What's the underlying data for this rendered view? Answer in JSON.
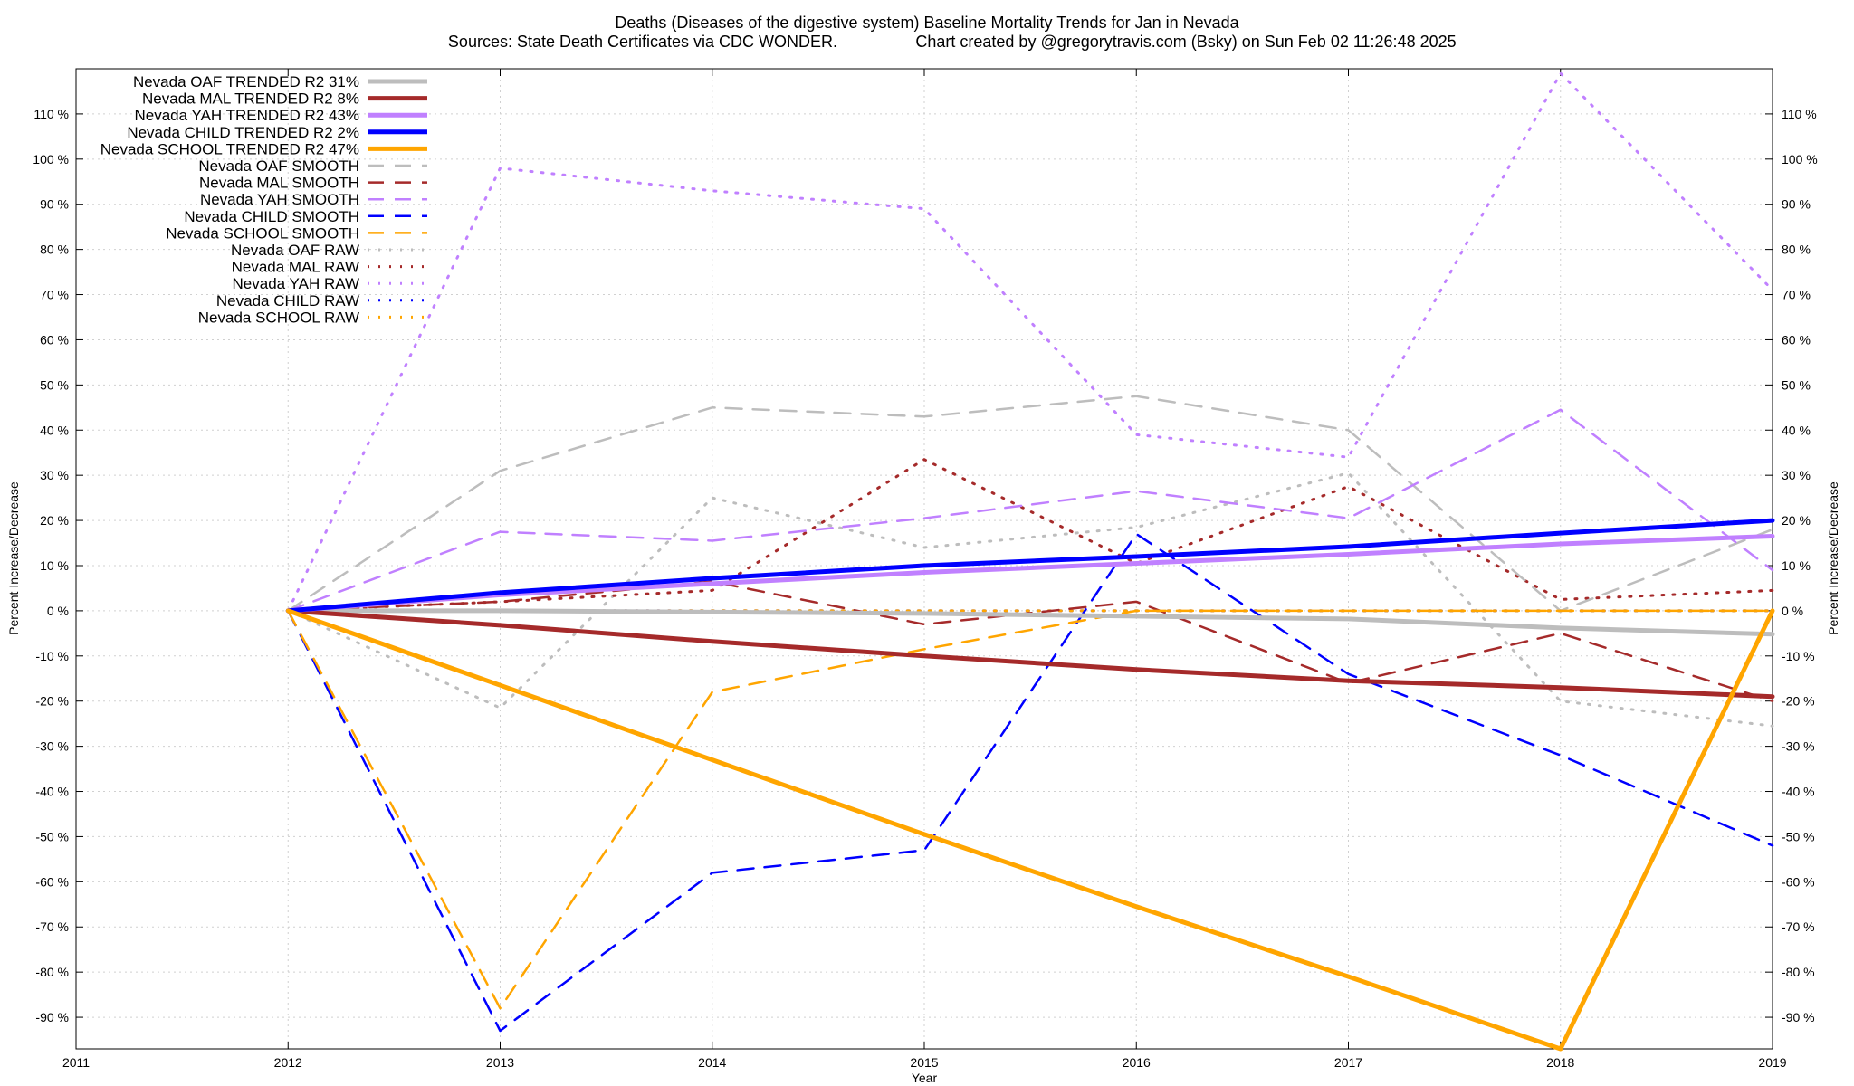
{
  "chart_data": {
    "type": "line",
    "title": "Deaths (Diseases of the digestive system)  Baseline Mortality Trends for Jan in Nevada",
    "subtitle_left": "Sources: State Death Certificates via CDC WONDER.",
    "subtitle_right": "Chart created by @gregorytravis.com (Bsky) on Sun Feb 02 11:26:48 2025",
    "xlabel": "Year",
    "ylabel": "Percent Increase/Decrease",
    "xlim": [
      2011,
      2019
    ],
    "ylim": [
      -97,
      120
    ],
    "x_ticks": [
      2011,
      2012,
      2013,
      2014,
      2015,
      2016,
      2017,
      2018,
      2019
    ],
    "y_ticks": [
      110,
      100,
      90,
      80,
      70,
      60,
      50,
      40,
      30,
      20,
      10,
      0,
      -10,
      -20,
      -30,
      -40,
      -50,
      -60,
      -70,
      -80,
      -90
    ],
    "y_tick_suffix": " %",
    "grid": true,
    "legend_position": "top-left",
    "series": [
      {
        "name": "Nevada OAF TRENDED R2  31%",
        "style": "trended",
        "color": "#bdbdbd",
        "x": [
          2012,
          2013,
          2014,
          2015,
          2016,
          2017,
          2018,
          2019
        ],
        "values": [
          0,
          0,
          -0.3,
          -0.6,
          -1.2,
          -1.8,
          -3.8,
          -5.2
        ]
      },
      {
        "name": "Nevada MAL TRENDED R2   8%",
        "style": "trended",
        "color": "#a52a2a",
        "x": [
          2012,
          2013,
          2014,
          2015,
          2016,
          2017,
          2018,
          2019
        ],
        "values": [
          0,
          -3.2,
          -6.8,
          -10,
          -13,
          -15.5,
          -17,
          -19
        ]
      },
      {
        "name": "Nevada YAH TRENDED R2  43%",
        "style": "trended",
        "color": "#c080ff",
        "x": [
          2012,
          2013,
          2014,
          2015,
          2016,
          2017,
          2018,
          2019
        ],
        "values": [
          0,
          3.5,
          6,
          8.5,
          10.5,
          12.5,
          14.8,
          16.5
        ]
      },
      {
        "name": "Nevada CHILD TRENDED R2   2%",
        "style": "trended",
        "color": "#0000ff",
        "x": [
          2012,
          2013,
          2014,
          2015,
          2016,
          2017,
          2018,
          2019
        ],
        "values": [
          0,
          4,
          7.2,
          10,
          12,
          14.2,
          17.2,
          20
        ]
      },
      {
        "name": "Nevada SCHOOL TRENDED R2  47%",
        "style": "trended",
        "color": "#ffa500",
        "x": [
          2012,
          2013,
          2014,
          2015,
          2016,
          2017,
          2018,
          2019
        ],
        "values": [
          0,
          -16.5,
          -33,
          -49.5,
          -65.5,
          -81,
          -97,
          0
        ]
      },
      {
        "name": "Nevada OAF SMOOTH",
        "style": "smooth",
        "color": "#bdbdbd",
        "x": [
          2012,
          2013,
          2014,
          2015,
          2016,
          2017,
          2018,
          2019
        ],
        "values": [
          0,
          31,
          45,
          43,
          47.5,
          40,
          0,
          18
        ]
      },
      {
        "name": "Nevada MAL SMOOTH",
        "style": "smooth",
        "color": "#a52a2a",
        "x": [
          2012,
          2013,
          2014,
          2015,
          2016,
          2017,
          2018,
          2019
        ],
        "values": [
          0,
          2,
          6.5,
          -3,
          2,
          -16,
          -5,
          -20
        ]
      },
      {
        "name": "Nevada YAH SMOOTH",
        "style": "smooth",
        "color": "#c080ff",
        "x": [
          2012,
          2013,
          2014,
          2015,
          2016,
          2017,
          2018,
          2019
        ],
        "values": [
          0,
          17.5,
          15.5,
          20.5,
          26.5,
          20.5,
          44.5,
          9
        ]
      },
      {
        "name": "Nevada CHILD SMOOTH",
        "style": "smooth",
        "color": "#0000ff",
        "x": [
          2012,
          2013,
          2014,
          2015,
          2016,
          2017,
          2018,
          2019
        ],
        "values": [
          0,
          -93,
          -58,
          -53,
          17,
          -14,
          -32,
          -52
        ]
      },
      {
        "name": "Nevada SCHOOL SMOOTH",
        "style": "smooth",
        "color": "#ffa500",
        "x": [
          2012,
          2013,
          2014,
          2015,
          2016,
          2017,
          2018,
          2019
        ],
        "values": [
          0,
          -88,
          -18,
          -8.5,
          0,
          0,
          0,
          0
        ]
      },
      {
        "name": "Nevada OAF RAW",
        "style": "raw",
        "color": "#bdbdbd",
        "x": [
          2012,
          2013,
          2014,
          2015,
          2016,
          2017,
          2018,
          2019
        ],
        "values": [
          0,
          -21.5,
          25,
          14,
          18.5,
          30.5,
          -20,
          -25.5
        ]
      },
      {
        "name": "Nevada MAL RAW",
        "style": "raw",
        "color": "#a52a2a",
        "x": [
          2012,
          2013,
          2014,
          2015,
          2016,
          2017,
          2018,
          2019
        ],
        "values": [
          0,
          2,
          4.5,
          33.5,
          10.5,
          27.5,
          2.5,
          4.5
        ]
      },
      {
        "name": "Nevada YAH RAW",
        "style": "raw",
        "color": "#c080ff",
        "x": [
          2012,
          2013,
          2014,
          2015,
          2016,
          2017,
          2018,
          2019
        ],
        "values": [
          0,
          98,
          93,
          89,
          39,
          34,
          119,
          71
        ]
      },
      {
        "name": "Nevada CHILD RAW",
        "style": "raw",
        "color": "#0000ff",
        "x": [
          2012,
          2013,
          2014,
          2015,
          2016,
          2017,
          2018,
          2019
        ],
        "values": [
          0,
          0,
          0,
          0,
          0,
          0,
          0,
          0
        ]
      },
      {
        "name": "Nevada SCHOOL RAW",
        "style": "raw",
        "color": "#ffa500",
        "x": [
          2012,
          2013,
          2014,
          2015,
          2016,
          2017,
          2018,
          2019
        ],
        "values": [
          0,
          0,
          0,
          0,
          0,
          0,
          0,
          0
        ]
      }
    ]
  }
}
